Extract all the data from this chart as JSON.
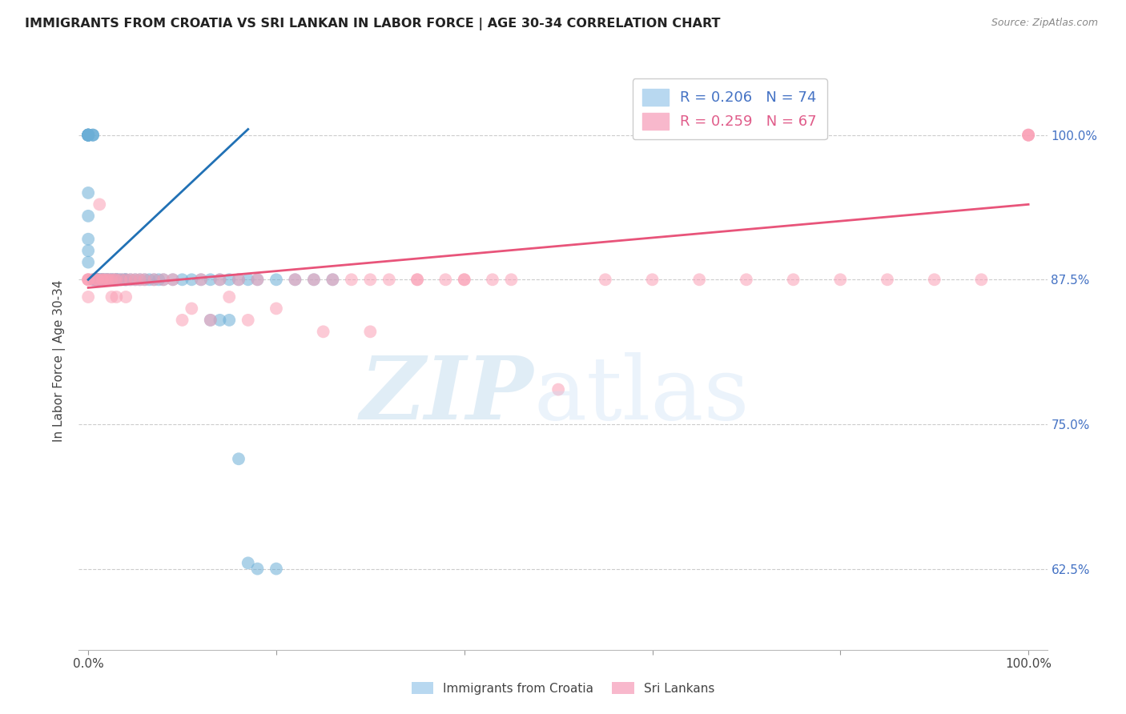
{
  "title": "IMMIGRANTS FROM CROATIA VS SRI LANKAN IN LABOR FORCE | AGE 30-34 CORRELATION CHART",
  "source": "Source: ZipAtlas.com",
  "ylabel": "In Labor Force | Age 30-34",
  "croatia_R": 0.206,
  "croatia_N": 74,
  "srilanka_R": 0.259,
  "srilanka_N": 67,
  "croatia_color": "#6baed6",
  "srilanka_color": "#fa9fb5",
  "croatia_line_color": "#2171b5",
  "srilanka_line_color": "#e8547a",
  "ytick_vals": [
    0.625,
    0.75,
    0.875,
    1.0
  ],
  "ytick_labels": [
    "62.5%",
    "75.0%",
    "87.5%",
    "100.0%"
  ],
  "ylim": [
    0.555,
    1.055
  ],
  "xlim": [
    -0.01,
    1.02
  ],
  "croatia_x": [
    0.0,
    0.0,
    0.0,
    0.0,
    0.0,
    0.0,
    0.0,
    0.0,
    0.0,
    0.0,
    0.0,
    0.0,
    0.0,
    0.0,
    0.0,
    0.005,
    0.005,
    0.005,
    0.005,
    0.007,
    0.008,
    0.008,
    0.009,
    0.01,
    0.01,
    0.01,
    0.012,
    0.013,
    0.015,
    0.015,
    0.016,
    0.018,
    0.02,
    0.02,
    0.022,
    0.025,
    0.025,
    0.028,
    0.03,
    0.03,
    0.032,
    0.035,
    0.038,
    0.04,
    0.04,
    0.045,
    0.05,
    0.055,
    0.06,
    0.065,
    0.07,
    0.075,
    0.08,
    0.09,
    0.1,
    0.11,
    0.12,
    0.13,
    0.14,
    0.15,
    0.16,
    0.17,
    0.18,
    0.2,
    0.22,
    0.24,
    0.26,
    0.13,
    0.14,
    0.15,
    0.16,
    0.17,
    0.18,
    0.2
  ],
  "croatia_y": [
    1.0,
    1.0,
    1.0,
    1.0,
    1.0,
    1.0,
    1.0,
    1.0,
    1.0,
    1.0,
    0.95,
    0.93,
    0.91,
    0.9,
    0.89,
    1.0,
    1.0,
    1.0,
    0.875,
    0.875,
    0.875,
    0.875,
    0.875,
    0.875,
    0.875,
    0.875,
    0.875,
    0.875,
    0.875,
    0.875,
    0.875,
    0.875,
    0.875,
    0.875,
    0.875,
    0.875,
    0.875,
    0.875,
    0.875,
    0.875,
    0.875,
    0.875,
    0.875,
    0.875,
    0.875,
    0.875,
    0.875,
    0.875,
    0.875,
    0.875,
    0.875,
    0.875,
    0.875,
    0.875,
    0.875,
    0.875,
    0.875,
    0.875,
    0.875,
    0.875,
    0.875,
    0.875,
    0.875,
    0.875,
    0.875,
    0.875,
    0.875,
    0.84,
    0.84,
    0.84,
    0.72,
    0.63,
    0.625,
    0.625
  ],
  "srilanka_x": [
    0.0,
    0.0,
    0.0,
    0.0,
    0.005,
    0.007,
    0.01,
    0.01,
    0.012,
    0.015,
    0.015,
    0.018,
    0.02,
    0.022,
    0.025,
    0.025,
    0.028,
    0.03,
    0.03,
    0.035,
    0.04,
    0.04,
    0.045,
    0.05,
    0.055,
    0.06,
    0.07,
    0.08,
    0.09,
    0.1,
    0.11,
    0.12,
    0.13,
    0.14,
    0.15,
    0.16,
    0.17,
    0.18,
    0.2,
    0.22,
    0.24,
    0.26,
    0.28,
    0.3,
    0.32,
    0.35,
    0.38,
    0.4,
    0.43,
    0.45,
    0.5,
    0.55,
    0.6,
    0.65,
    0.7,
    0.75,
    0.8,
    0.85,
    0.9,
    0.95,
    1.0,
    1.0,
    1.0,
    0.25,
    0.3,
    0.35,
    0.4
  ],
  "srilanka_y": [
    0.875,
    0.875,
    0.875,
    0.86,
    0.875,
    0.875,
    0.875,
    0.875,
    0.94,
    0.875,
    0.875,
    0.875,
    0.875,
    0.875,
    0.875,
    0.86,
    0.875,
    0.875,
    0.86,
    0.875,
    0.875,
    0.86,
    0.875,
    0.875,
    0.875,
    0.875,
    0.875,
    0.875,
    0.875,
    0.84,
    0.85,
    0.875,
    0.84,
    0.875,
    0.86,
    0.875,
    0.84,
    0.875,
    0.85,
    0.875,
    0.875,
    0.875,
    0.875,
    0.875,
    0.875,
    0.875,
    0.875,
    0.875,
    0.875,
    0.875,
    0.78,
    0.875,
    0.875,
    0.875,
    0.875,
    0.875,
    0.875,
    0.875,
    0.875,
    0.875,
    1.0,
    1.0,
    1.0,
    0.83,
    0.83,
    0.875,
    0.875
  ]
}
